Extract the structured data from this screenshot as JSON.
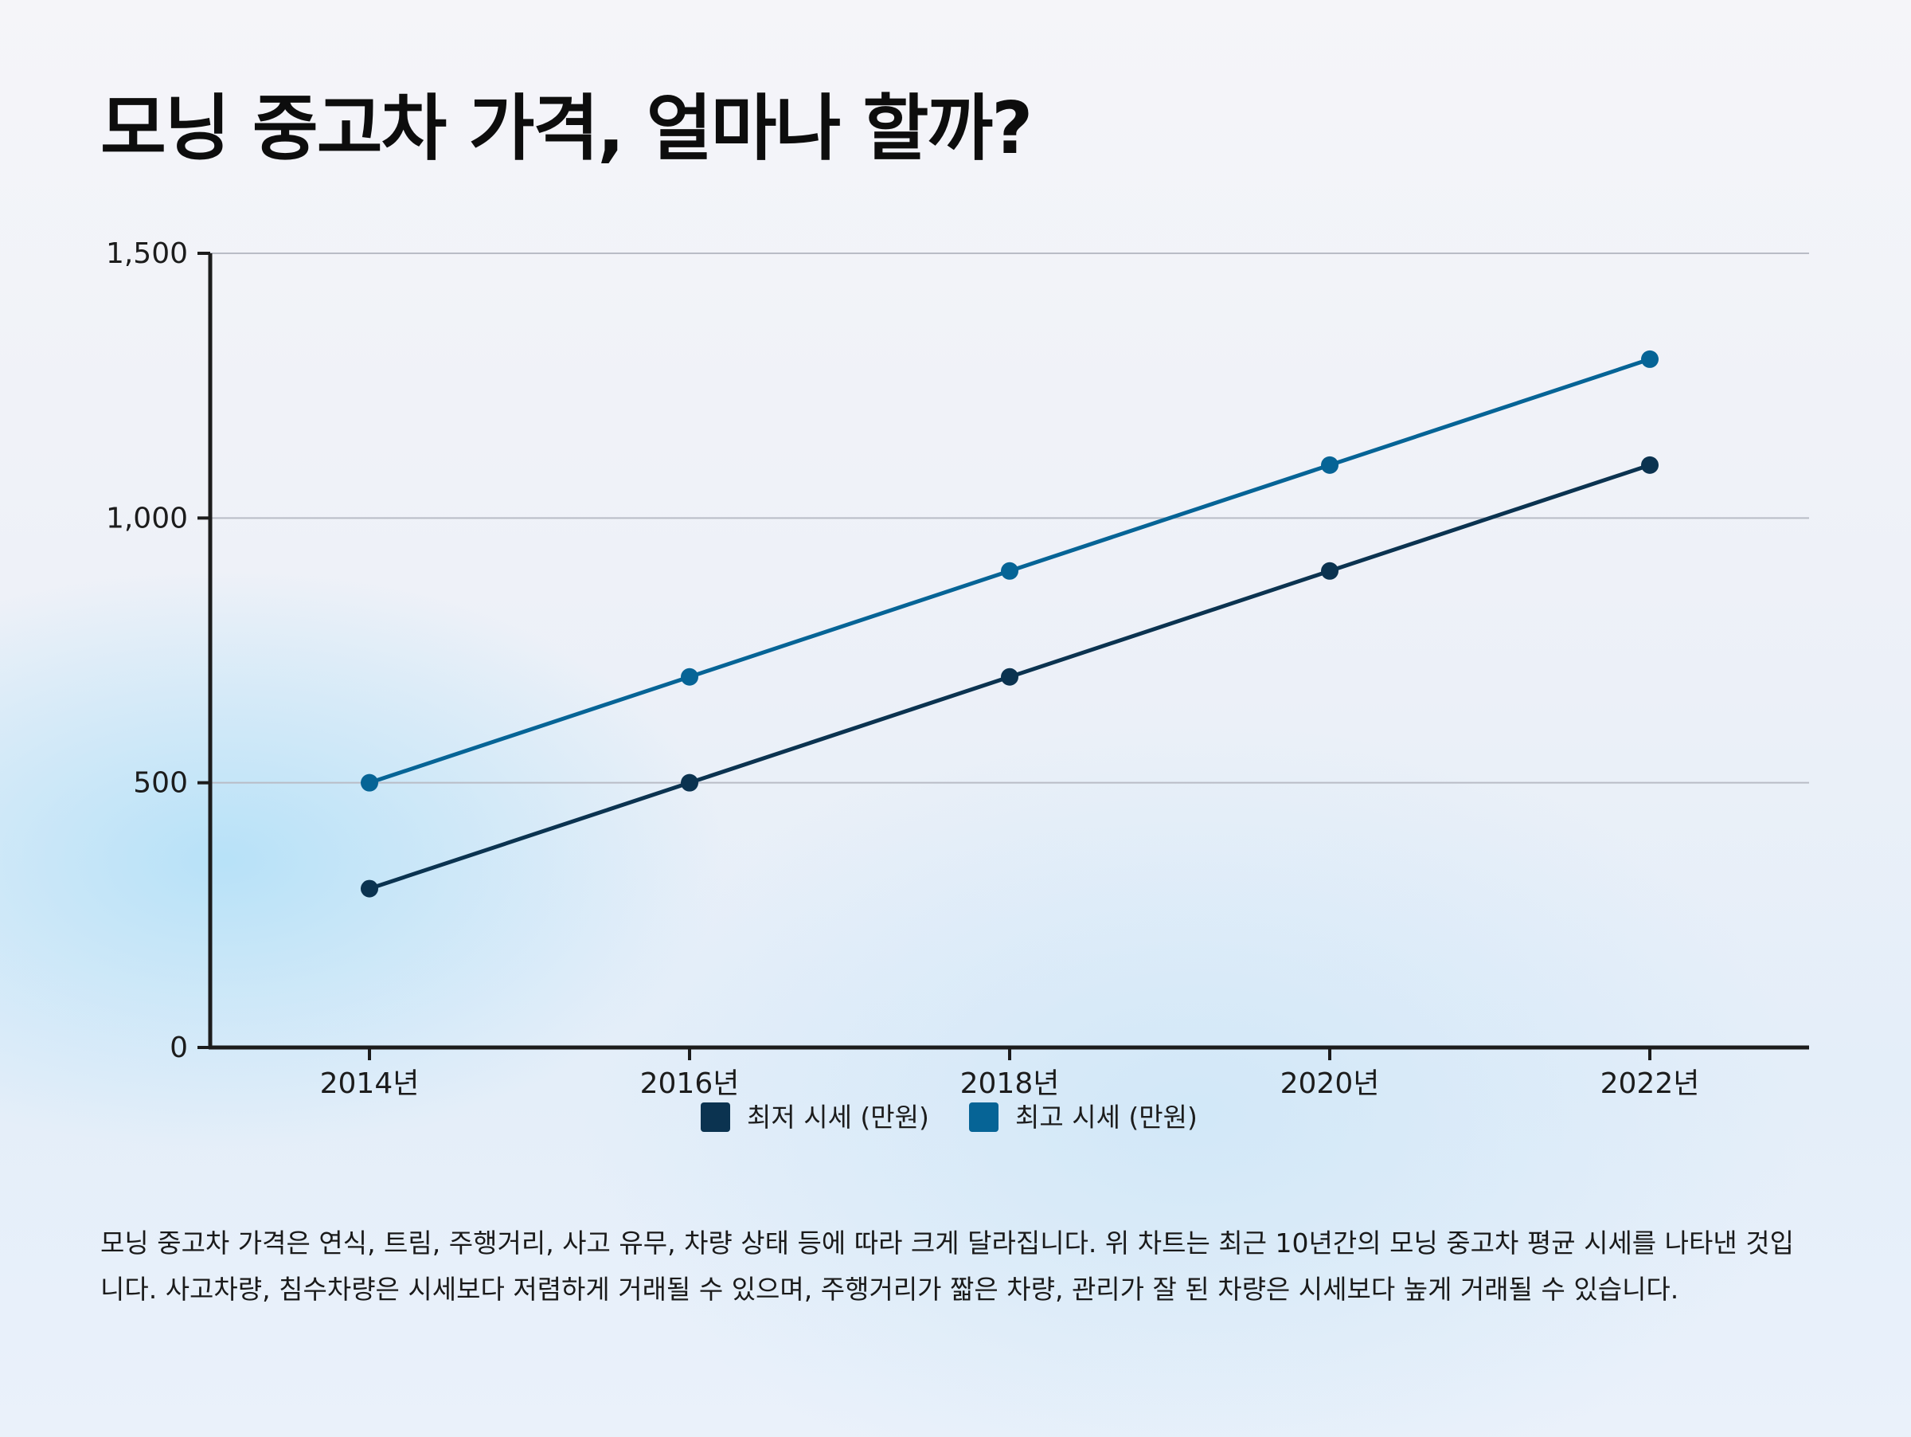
{
  "title": "모닝 중고차 가격, 얼마나 할까?",
  "description": "모닝 중고차 가격은 연식, 트림, 주행거리, 사고 유무, 차량 상태 등에 따라 크게 달라집니다. 위 차트는 최근 10년간의 모닝 중고차 평균 시세를 나타낸 것입니다. 사고차량, 침수차량은 시세보다 저렴하게 거래될 수 있으며, 주행거리가 짧은 차량, 관리가 잘 된 차량은 시세보다 높게 거래될 수 있습니다.",
  "chart_data": {
    "type": "line",
    "title": "모닝 중고차 가격, 얼마나 할까?",
    "xlabel": "",
    "ylabel": "",
    "categories": [
      "2014년",
      "2016년",
      "2018년",
      "2020년",
      "2022년"
    ],
    "ylim": [
      0,
      1500
    ],
    "yticks": [
      0,
      500,
      1000,
      1500
    ],
    "ytick_labels": [
      "0",
      "500",
      "1,000",
      "1,500"
    ],
    "grid": true,
    "legend_position": "bottom",
    "series": [
      {
        "name": "최저 시세 (만원)",
        "color": "#0b3350",
        "values": [
          300,
          500,
          700,
          900,
          1100
        ]
      },
      {
        "name": "최고 시세 (만원)",
        "color": "#066496",
        "values": [
          500,
          700,
          900,
          1100,
          1300
        ]
      }
    ]
  }
}
